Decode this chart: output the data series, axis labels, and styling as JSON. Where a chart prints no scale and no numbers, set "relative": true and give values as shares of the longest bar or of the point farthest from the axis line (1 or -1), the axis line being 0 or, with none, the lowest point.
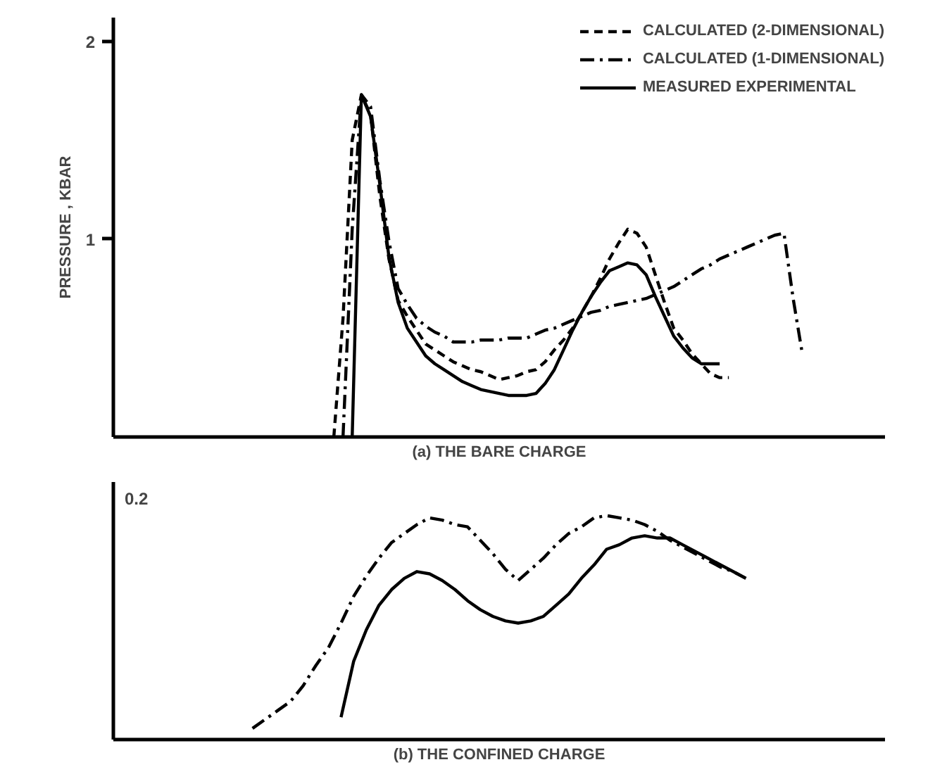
{
  "chart_data": [
    {
      "type": "line",
      "xlabel": "(a) THE BARE CHARGE",
      "ylabel": "PRESSURE , KBAR",
      "categories": [
        null,
        null,
        null,
        null,
        null,
        null,
        null,
        null,
        null,
        null,
        null,
        null,
        null,
        null,
        null,
        null,
        null,
        null,
        null,
        null,
        null,
        null,
        null,
        null,
        null,
        null,
        null,
        null,
        null,
        null,
        null,
        null,
        null,
        null,
        null,
        null,
        null,
        null,
        null,
        null,
        null,
        null,
        null,
        null,
        null,
        null,
        null,
        null,
        null,
        null,
        null,
        null,
        null,
        null,
        null,
        null,
        null,
        null,
        null,
        null,
        null,
        null,
        null,
        null,
        null,
        null,
        null,
        null,
        null,
        null,
        null,
        null,
        null,
        null,
        null,
        null,
        null,
        null,
        null,
        null,
        null,
        null,
        null,
        null,
        null
      ],
      "ylim": [
        0,
        2.12
      ],
      "yticks": [
        1,
        2
      ],
      "grid": false,
      "legend": "top right",
      "series": [
        {
          "name": "CALCULATED (2-DIMENSIONAL)",
          "color": "#000000",
          "line_style": "dashed",
          "values": [
            null,
            null,
            null,
            null,
            null,
            null,
            null,
            null,
            null,
            null,
            null,
            null,
            null,
            null,
            null,
            null,
            null,
            null,
            null,
            null,
            null,
            null,
            null,
            null,
            0,
            0.6,
            1.5,
            1.73,
            1.63,
            1.22,
            0.9,
            0.69,
            0.61,
            0.54,
            0.47,
            0.44,
            0.41,
            0.38,
            0.36,
            0.34,
            0.33,
            0.31,
            0.29,
            0.3,
            0.31,
            0.33,
            0.34,
            0.38,
            0.44,
            0.49,
            0.55,
            0.63,
            0.71,
            0.8,
            0.9,
            0.98,
            1.05,
            1.03,
            0.96,
            0.82,
            0.68,
            0.55,
            0.49,
            0.42,
            0.37,
            0.32,
            0.3,
            0.3,
            null,
            null,
            null,
            null,
            null,
            null,
            null,
            null,
            null,
            null,
            null,
            null,
            null,
            null,
            null,
            null,
            null
          ]
        },
        {
          "name": "CALCULATED (1-DIMENSIONAL)",
          "color": "#000000",
          "line_style": "dashdot",
          "values": [
            null,
            null,
            null,
            null,
            null,
            null,
            null,
            null,
            null,
            null,
            null,
            null,
            null,
            null,
            null,
            null,
            null,
            null,
            null,
            null,
            null,
            null,
            null,
            null,
            null,
            0,
            1.05,
            1.73,
            1.67,
            1.3,
            0.99,
            0.75,
            0.67,
            0.6,
            0.56,
            0.53,
            0.51,
            0.48,
            0.48,
            0.48,
            0.49,
            0.49,
            0.49,
            0.5,
            0.5,
            0.5,
            0.52,
            0.54,
            0.55,
            0.57,
            0.59,
            0.61,
            0.63,
            0.64,
            0.66,
            0.67,
            0.68,
            0.69,
            0.7,
            0.72,
            0.74,
            0.76,
            0.79,
            0.82,
            0.85,
            0.87,
            0.9,
            0.92,
            0.94,
            0.96,
            0.98,
            1.0,
            1.02,
            1.03,
            0.7,
            0.42,
            null,
            null,
            null,
            null,
            null,
            null,
            null,
            null,
            null
          ]
        },
        {
          "name": "MEASURED EXPERIMENTAL",
          "color": "#000000",
          "line_style": "solid",
          "values": [
            null,
            null,
            null,
            null,
            null,
            null,
            null,
            null,
            null,
            null,
            null,
            null,
            null,
            null,
            null,
            null,
            null,
            null,
            null,
            null,
            null,
            null,
            null,
            null,
            null,
            null,
            0,
            1.73,
            1.62,
            1.28,
            0.91,
            0.68,
            0.55,
            0.48,
            0.41,
            0.37,
            0.34,
            0.31,
            0.28,
            0.26,
            0.24,
            0.23,
            0.22,
            0.21,
            0.21,
            0.21,
            0.22,
            0.27,
            0.34,
            0.44,
            0.54,
            0.63,
            0.71,
            0.78,
            0.84,
            0.86,
            0.88,
            0.87,
            0.82,
            0.71,
            0.61,
            0.51,
            0.45,
            0.4,
            0.37,
            0.37,
            0.37,
            null,
            null,
            null,
            null,
            null,
            null,
            null,
            null,
            null,
            null,
            null,
            null,
            null,
            null,
            null,
            null,
            null,
            null
          ]
        }
      ]
    },
    {
      "type": "line",
      "xlabel": "(b) THE CONFINED CHARGE",
      "relative": true,
      "categories": [
        null,
        null,
        null,
        null,
        null,
        null,
        null,
        null,
        null,
        null,
        null,
        null,
        null,
        null,
        null,
        null,
        null,
        null,
        null,
        null,
        null,
        null,
        null,
        null,
        null,
        null,
        null,
        null,
        null,
        null,
        null,
        null,
        null,
        null,
        null,
        null,
        null,
        null,
        null,
        null,
        null,
        null,
        null,
        null,
        null,
        null,
        null,
        null,
        null,
        null,
        null,
        null,
        null,
        null,
        null,
        null,
        null,
        null,
        null,
        null,
        null,
        null
      ],
      "grid": false,
      "annotations": [
        "0.2"
      ],
      "series": [
        {
          "color": "#000000",
          "line_style": "dashdot",
          "values": [
            null,
            null,
            null,
            null,
            null,
            null,
            null,
            null,
            null,
            null,
            null,
            0.05,
            0.09,
            0.13,
            0.17,
            0.24,
            0.33,
            0.41,
            0.52,
            0.64,
            0.73,
            0.81,
            0.88,
            0.92,
            0.96,
            0.99,
            0.98,
            0.96,
            0.95,
            0.89,
            0.83,
            0.76,
            0.71,
            0.76,
            0.81,
            0.87,
            0.92,
            0.95,
            0.99,
            1.0,
            0.99,
            0.98,
            0.96,
            0.93,
            0.89,
            0.86,
            0.83,
            0.8,
            0.77,
            0.75,
            0.72,
            null,
            null,
            null,
            null,
            null,
            null,
            null,
            null,
            null,
            null,
            null
          ]
        },
        {
          "color": "#000000",
          "line_style": "solid",
          "values": [
            null,
            null,
            null,
            null,
            null,
            null,
            null,
            null,
            null,
            null,
            null,
            null,
            null,
            null,
            null,
            null,
            null,
            null,
            0.1,
            0.35,
            0.49,
            0.6,
            0.67,
            0.72,
            0.75,
            0.74,
            0.71,
            0.67,
            0.62,
            0.58,
            0.55,
            0.53,
            0.52,
            0.53,
            0.55,
            0.6,
            0.65,
            0.72,
            0.78,
            0.85,
            0.87,
            0.9,
            0.91,
            0.9,
            0.9,
            0.87,
            0.84,
            0.81,
            0.78,
            0.75,
            0.72,
            null,
            null,
            null,
            null,
            null,
            null,
            null,
            null,
            null,
            null,
            null
          ]
        }
      ]
    }
  ]
}
